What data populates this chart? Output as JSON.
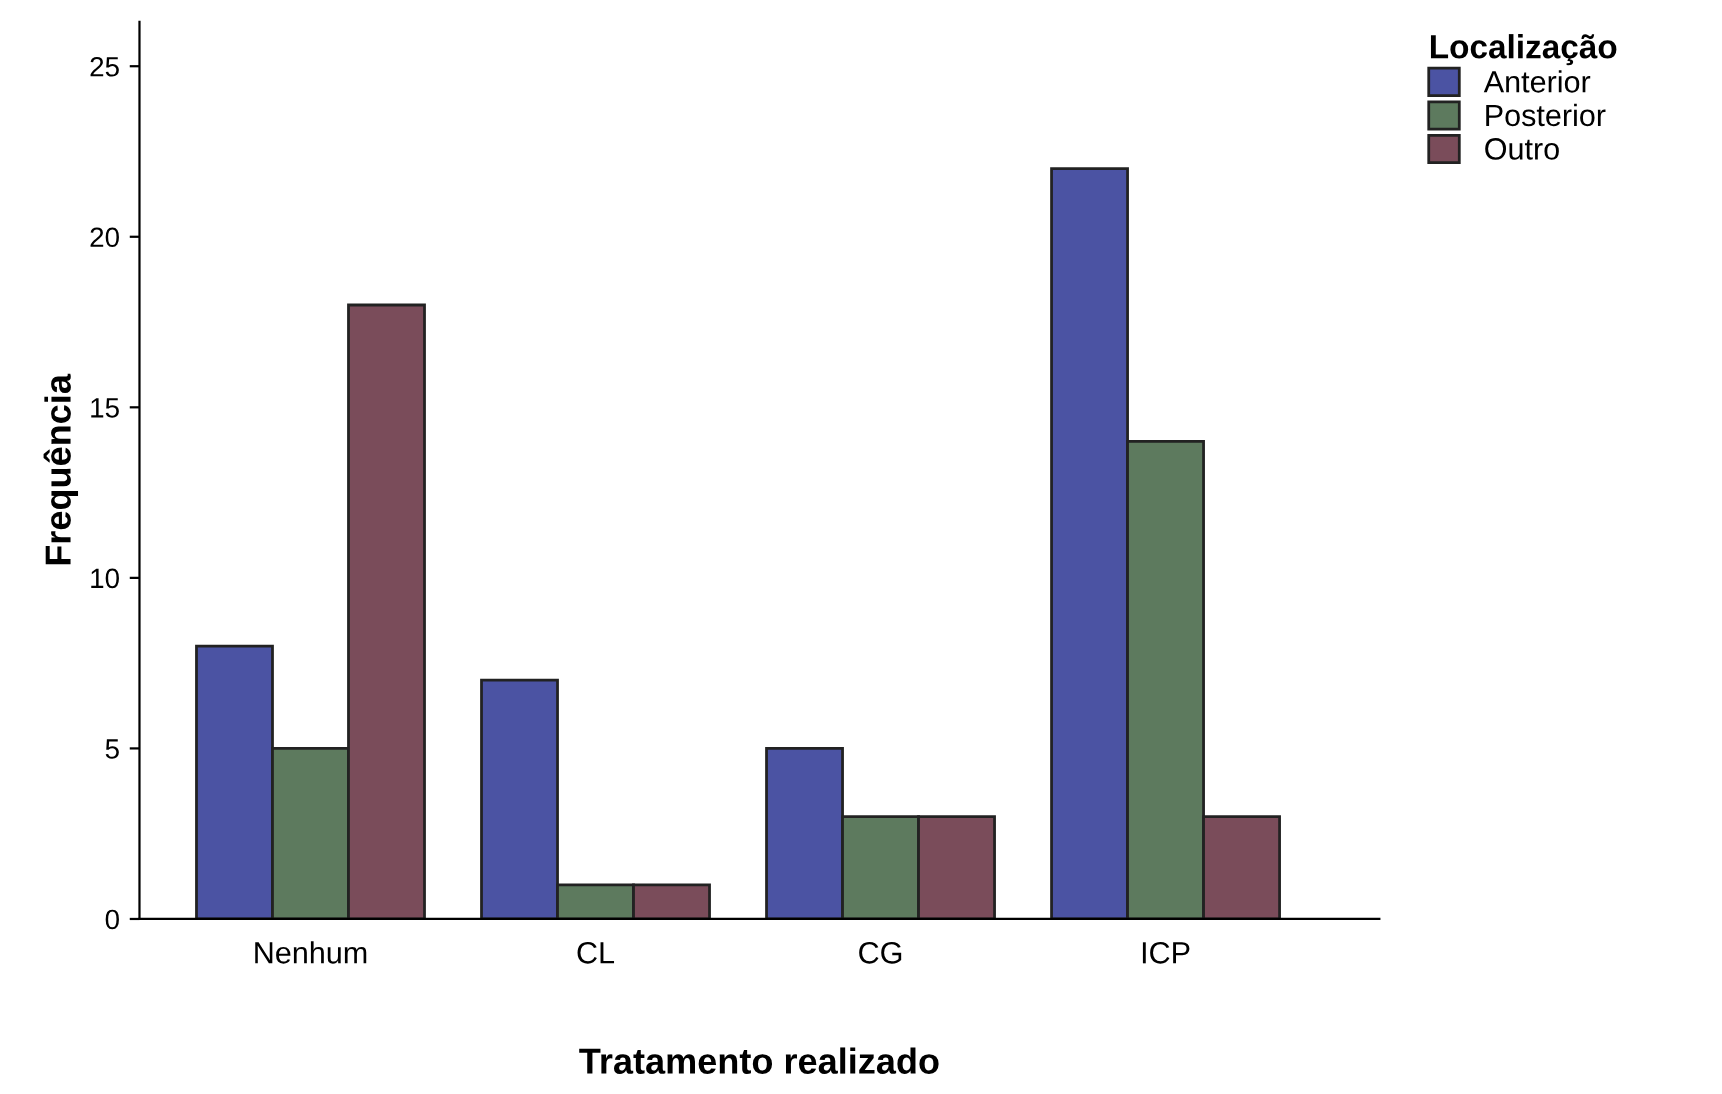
{
  "chart_data": {
    "type": "bar",
    "xlabel": "Tratamento realizado",
    "ylabel": "Frequência",
    "legend_title": "Localização",
    "categories": [
      "Nenhum",
      "CL",
      "CG",
      "ICP"
    ],
    "series": [
      {
        "name": "Anterior",
        "color": "#4b53a3",
        "values": [
          8,
          7,
          5,
          22
        ]
      },
      {
        "name": "Posterior",
        "color": "#5d7a5e",
        "values": [
          5,
          1,
          3,
          14
        ]
      },
      {
        "name": "Outro",
        "color": "#7a4c5a",
        "values": [
          18,
          1,
          3,
          3
        ]
      }
    ],
    "ylim": [
      0,
      26.3
    ],
    "yticks": [
      0,
      5,
      10,
      15,
      20,
      25
    ],
    "grid": false,
    "legend": "top right"
  }
}
